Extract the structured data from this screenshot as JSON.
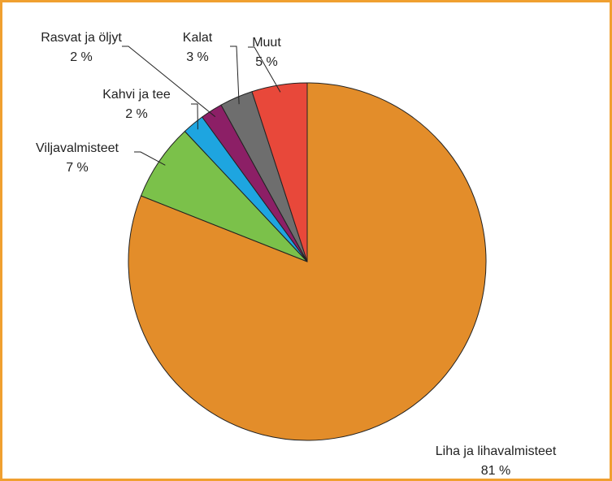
{
  "chart_data": {
    "type": "pie",
    "categories": [
      "Liha ja lihavalmisteet",
      "Viljavalmisteet",
      "Kahvi ja tee",
      "Rasvat ja öljyt",
      "Kalat",
      "Muut"
    ],
    "values": [
      81,
      7,
      2,
      2,
      3,
      5
    ],
    "value_labels": [
      "81 %",
      "7 %",
      "2 %",
      "2 %",
      "3 %",
      "5 %"
    ],
    "colors": [
      "#e38d2a",
      "#7bc14a",
      "#1ea5e0",
      "#8c1f66",
      "#6e6e6e",
      "#e8483a"
    ]
  }
}
